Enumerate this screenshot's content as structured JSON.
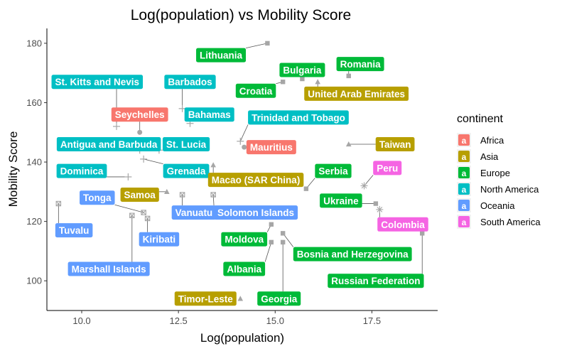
{
  "chart_data": {
    "type": "scatter",
    "title": "Log(population) vs Mobility Score",
    "xlabel": "Log(population)",
    "ylabel": "Mobility Score",
    "xlim": [
      9.1,
      19.2
    ],
    "ylim": [
      90,
      185
    ],
    "x_ticks": [
      10.0,
      12.5,
      15.0,
      17.5
    ],
    "x_tick_labels": [
      "10.0",
      "12.5",
      "15.0",
      "17.5"
    ],
    "y_ticks": [
      100,
      120,
      140,
      160,
      180
    ],
    "y_tick_labels": [
      "100",
      "120",
      "140",
      "160",
      "180"
    ],
    "grid": false,
    "legend": {
      "title": "continent",
      "placement": "right",
      "key_glyph": "a",
      "entries": [
        {
          "name": "Africa",
          "color": "#F8766D"
        },
        {
          "name": "Asia",
          "color": "#B79F00"
        },
        {
          "name": "Europe",
          "color": "#00BA38"
        },
        {
          "name": "North America",
          "color": "#00BFC4"
        },
        {
          "name": "Oceania",
          "color": "#619CFF"
        },
        {
          "name": "South America",
          "color": "#F564E3"
        }
      ]
    },
    "point_color": "#a6a6a6",
    "points": [
      {
        "label": "Lithuania",
        "continent": "Europe",
        "x": 14.8,
        "y": 180,
        "shape": "square"
      },
      {
        "label": "Bulgaria",
        "continent": "Europe",
        "x": 15.7,
        "y": 168,
        "shape": "square"
      },
      {
        "label": "Romania",
        "continent": "Europe",
        "x": 16.9,
        "y": 169,
        "shape": "square"
      },
      {
        "label": "Croatia",
        "continent": "Europe",
        "x": 15.2,
        "y": 167,
        "shape": "square"
      },
      {
        "label": "United Arab Emirates",
        "continent": "Asia",
        "x": 16.1,
        "y": 167,
        "shape": "triangle"
      },
      {
        "label": "St. Kitts and Nevis",
        "continent": "North America",
        "x": 10.9,
        "y": 152,
        "shape": "plus"
      },
      {
        "label": "Barbados",
        "continent": "North America",
        "x": 12.6,
        "y": 158,
        "shape": "plus"
      },
      {
        "label": "Seychelles",
        "continent": "Africa",
        "x": 11.5,
        "y": 150,
        "shape": "circle"
      },
      {
        "label": "Bahamas",
        "continent": "North America",
        "x": 12.8,
        "y": 153,
        "shape": "plus"
      },
      {
        "label": "Trinidad and Tobago",
        "continent": "North America",
        "x": 14.1,
        "y": 147,
        "shape": "plus"
      },
      {
        "label": "Antigua and Barbuda",
        "continent": "North America",
        "x": 11.5,
        "y": 144,
        "shape": "plus"
      },
      {
        "label": "St. Lucia",
        "continent": "North America",
        "x": 12.0,
        "y": 144,
        "shape": "plus"
      },
      {
        "label": "Mauritius",
        "continent": "Africa",
        "x": 14.2,
        "y": 145,
        "shape": "circle"
      },
      {
        "label": "Taiwan",
        "continent": "Asia",
        "x": 16.9,
        "y": 146,
        "shape": "triangle"
      },
      {
        "label": "Dominica",
        "continent": "North America",
        "x": 11.2,
        "y": 135,
        "shape": "plus"
      },
      {
        "label": "Grenada",
        "continent": "North America",
        "x": 11.6,
        "y": 141,
        "shape": "plus"
      },
      {
        "label": "Macao (SAR China)",
        "continent": "Asia",
        "x": 13.4,
        "y": 139,
        "shape": "triangle"
      },
      {
        "label": "Serbia",
        "continent": "Europe",
        "x": 15.8,
        "y": 131,
        "shape": "square"
      },
      {
        "label": "Peru",
        "continent": "South America",
        "x": 17.3,
        "y": 132,
        "shape": "star"
      },
      {
        "label": "Tonga",
        "continent": "Oceania",
        "x": 11.6,
        "y": 123,
        "shape": "boxx"
      },
      {
        "label": "Samoa",
        "continent": "Asia",
        "x": 12.2,
        "y": 130,
        "shape": "triangle"
      },
      {
        "label": "Vanuatu",
        "continent": "Oceania",
        "x": 12.6,
        "y": 129,
        "shape": "boxx"
      },
      {
        "label": "Solomon Islands",
        "continent": "Oceania",
        "x": 13.4,
        "y": 129,
        "shape": "boxx"
      },
      {
        "label": "Ukraine",
        "continent": "Europe",
        "x": 17.6,
        "y": 126,
        "shape": "square"
      },
      {
        "label": "Colombia",
        "continent": "South America",
        "x": 17.7,
        "y": 124,
        "shape": "star"
      },
      {
        "label": "Tuvalu",
        "continent": "Oceania",
        "x": 9.4,
        "y": 126,
        "shape": "boxx"
      },
      {
        "label": "Kiribati",
        "continent": "Oceania",
        "x": 11.7,
        "y": 121,
        "shape": "boxx"
      },
      {
        "label": "Marshall Islands",
        "continent": "Oceania",
        "x": 11.3,
        "y": 122,
        "shape": "boxx"
      },
      {
        "label": "Moldova",
        "continent": "Europe",
        "x": 14.9,
        "y": 119,
        "shape": "square"
      },
      {
        "label": "Bosnia and Herzegovina",
        "continent": "Europe",
        "x": 15.2,
        "y": 116,
        "shape": "square"
      },
      {
        "label": "Albania",
        "continent": "Europe",
        "x": 14.9,
        "y": 113,
        "shape": "square"
      },
      {
        "label": "Georgia",
        "continent": "Europe",
        "x": 15.2,
        "y": 113,
        "shape": "square"
      },
      {
        "label": "Russian Federation",
        "continent": "Europe",
        "x": 18.8,
        "y": 116,
        "shape": "square"
      },
      {
        "label": "Timor-Leste",
        "continent": "Asia",
        "x": 14.1,
        "y": 94,
        "shape": "triangle"
      }
    ],
    "labels": [
      {
        "text": "Lithuania",
        "continent": "Europe",
        "x": 13.6,
        "y": 176,
        "point": 0
      },
      {
        "text": "Bulgaria",
        "continent": "Europe",
        "x": 15.7,
        "y": 171,
        "point": 1
      },
      {
        "text": "Romania",
        "continent": "Europe",
        "x": 17.2,
        "y": 173,
        "point": 2
      },
      {
        "text": "Croatia",
        "continent": "Europe",
        "x": 14.5,
        "y": 164,
        "point": 3
      },
      {
        "text": "United Arab Emirates",
        "continent": "Asia",
        "x": 17.1,
        "y": 163,
        "point": 4
      },
      {
        "text": "St. Kitts and Nevis",
        "continent": "North America",
        "x": 10.4,
        "y": 167,
        "point": 5
      },
      {
        "text": "Barbados",
        "continent": "North America",
        "x": 12.8,
        "y": 167,
        "point": 6
      },
      {
        "text": "Seychelles",
        "continent": "Africa",
        "x": 11.5,
        "y": 156,
        "point": 7
      },
      {
        "text": "Bahamas",
        "continent": "North America",
        "x": 13.3,
        "y": 156,
        "point": 8
      },
      {
        "text": "Trinidad and Tobago",
        "continent": "North America",
        "x": 15.6,
        "y": 155,
        "point": 9
      },
      {
        "text": "Antigua and Barbuda",
        "continent": "North America",
        "x": 10.7,
        "y": 146,
        "point": 10
      },
      {
        "text": "St. Lucia",
        "continent": "North America",
        "x": 12.7,
        "y": 146,
        "point": 11
      },
      {
        "text": "Mauritius",
        "continent": "Africa",
        "x": 14.9,
        "y": 145,
        "point": 12
      },
      {
        "text": "Taiwan",
        "continent": "Asia",
        "x": 18.1,
        "y": 146,
        "point": 13
      },
      {
        "text": "Dominica",
        "continent": "North America",
        "x": 10.0,
        "y": 137,
        "point": 14
      },
      {
        "text": "Grenada",
        "continent": "North America",
        "x": 12.7,
        "y": 137,
        "point": 15
      },
      {
        "text": "Macao (SAR China)",
        "continent": "Asia",
        "x": 14.5,
        "y": 134,
        "point": 16
      },
      {
        "text": "Serbia",
        "continent": "Europe",
        "x": 16.5,
        "y": 137,
        "point": 17
      },
      {
        "text": "Peru",
        "continent": "South America",
        "x": 17.9,
        "y": 138,
        "point": 18
      },
      {
        "text": "Tonga",
        "continent": "Oceania",
        "x": 10.4,
        "y": 128,
        "point": 19
      },
      {
        "text": "Samoa",
        "continent": "Asia",
        "x": 11.5,
        "y": 129,
        "point": 20
      },
      {
        "text": "Vanuatu",
        "continent": "Oceania",
        "x": 12.9,
        "y": 123,
        "point": 21
      },
      {
        "text": "Solomon Islands",
        "continent": "Oceania",
        "x": 14.5,
        "y": 123,
        "point": 22
      },
      {
        "text": "Ukraine",
        "continent": "Europe",
        "x": 16.7,
        "y": 127,
        "point": 23
      },
      {
        "text": "Colombia",
        "continent": "South America",
        "x": 18.3,
        "y": 119,
        "point": 24
      },
      {
        "text": "Tuvalu",
        "continent": "Oceania",
        "x": 9.8,
        "y": 117,
        "point": 25
      },
      {
        "text": "Kiribati",
        "continent": "Oceania",
        "x": 12.0,
        "y": 114,
        "point": 26
      },
      {
        "text": "Marshall Islands",
        "continent": "Oceania",
        "x": 10.7,
        "y": 104,
        "point": 27
      },
      {
        "text": "Moldova",
        "continent": "Europe",
        "x": 14.2,
        "y": 114,
        "point": 28
      },
      {
        "text": "Bosnia and Herzegovina",
        "continent": "Europe",
        "x": 17.0,
        "y": 109,
        "point": 29
      },
      {
        "text": "Albania",
        "continent": "Europe",
        "x": 14.2,
        "y": 104,
        "point": 30
      },
      {
        "text": "Georgia",
        "continent": "Europe",
        "x": 15.1,
        "y": 94,
        "point": 31
      },
      {
        "text": "Russian Federation",
        "continent": "Europe",
        "x": 17.6,
        "y": 100,
        "point": 32
      },
      {
        "text": "Timor-Leste",
        "continent": "Asia",
        "x": 13.2,
        "y": 94,
        "point": 33
      }
    ]
  }
}
